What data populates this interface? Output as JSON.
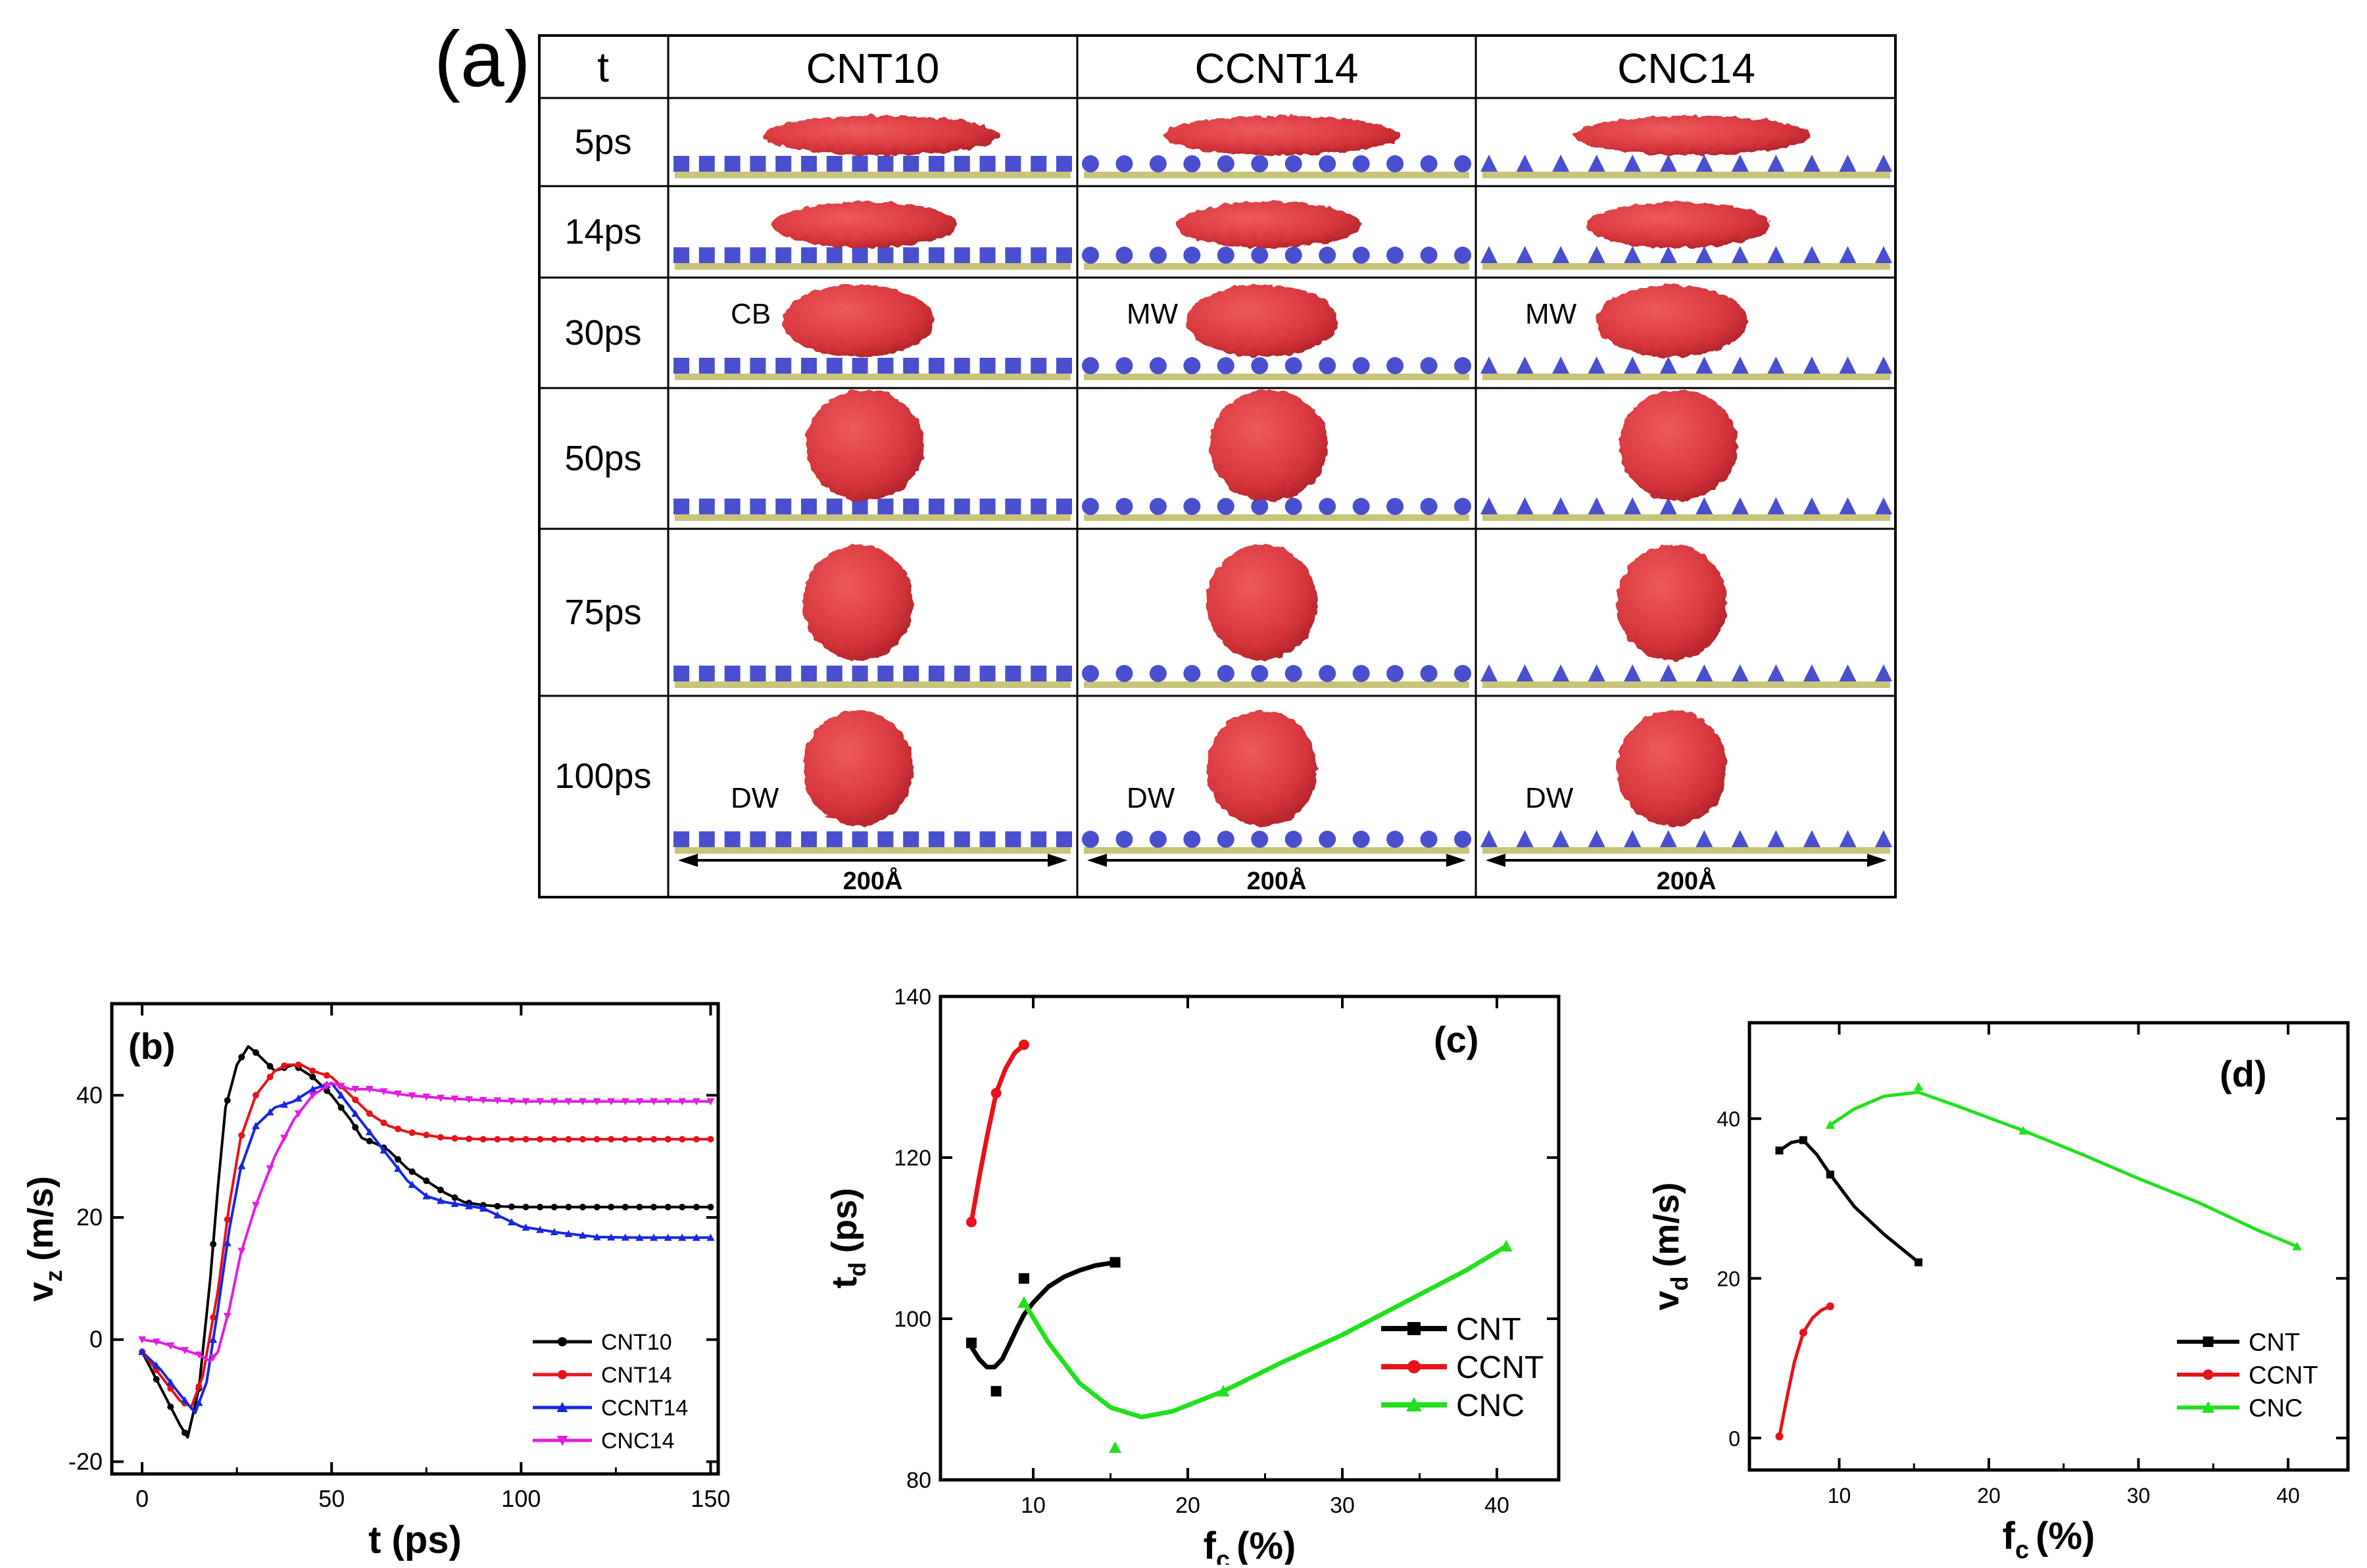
{
  "panel_a": {
    "tag": "(a)",
    "corner_header": "t",
    "columns": [
      "CNT10",
      "CCNT14",
      "CNC14"
    ],
    "rows": [
      {
        "time": "5ps",
        "labels": [
          "",
          "",
          ""
        ],
        "shape": [
          "slab",
          "slab",
          "slab"
        ]
      },
      {
        "time": "14ps",
        "labels": [
          "",
          "",
          ""
        ],
        "shape": [
          "slab2",
          "slab2",
          "slab2"
        ]
      },
      {
        "time": "30ps",
        "labels": [
          "CB",
          "MW",
          "MW"
        ],
        "shape": [
          "pill",
          "pill",
          "pill"
        ]
      },
      {
        "time": "50ps",
        "labels": [
          "",
          "",
          ""
        ],
        "shape": [
          "ball",
          "ball",
          "ball"
        ]
      },
      {
        "time": "75ps",
        "labels": [
          "",
          "",
          ""
        ],
        "shape": [
          "sphere",
          "sphere",
          "sphere"
        ]
      },
      {
        "time": "100ps",
        "labels": [
          "DW",
          "DW",
          "DW"
        ],
        "shape": [
          "sphere",
          "sphere",
          "sphere"
        ]
      }
    ],
    "scale_label": "200Å",
    "substrate": [
      "square",
      "circle",
      "triangle"
    ],
    "droplet_color": "#d6363c",
    "substrate_color": "#4a4fd0",
    "substrate_base_color": "#c8c47a"
  },
  "chart_data": [
    {
      "id": "b",
      "type": "line",
      "tag": "(b)",
      "xlabel": "t (ps)",
      "ylabel": "v",
      "ylabel_sub": "z",
      "ylabel_unit": "(m/s)",
      "xlim": [
        -8,
        152
      ],
      "ylim": [
        -22,
        55
      ],
      "xticks": [
        0,
        50,
        100,
        150
      ],
      "yticks": [
        -20,
        0,
        20,
        40
      ],
      "legend_position": "bottom-right",
      "series": [
        {
          "name": "CNT10",
          "color": "#000000",
          "marker": "circle",
          "x": [
            0,
            5,
            10,
            12,
            15,
            18,
            20,
            22,
            25,
            28,
            30,
            35,
            40,
            45,
            50,
            55,
            58,
            62,
            65,
            70,
            75,
            80,
            85,
            90,
            95,
            100,
            110,
            120,
            130,
            140,
            150
          ],
          "y": [
            -2,
            -8,
            -14,
            -16,
            -8,
            10,
            25,
            38,
            45,
            48,
            47,
            44,
            45,
            43,
            40,
            36,
            33,
            32,
            31,
            28,
            26,
            24,
            22.5,
            22,
            21.8,
            21.7,
            21.7,
            21.7,
            21.7,
            21.7,
            21.7
          ]
        },
        {
          "name": "CNT14",
          "color": "#e8121a",
          "marker": "circle",
          "x": [
            0,
            5,
            10,
            13,
            16,
            20,
            23,
            26,
            30,
            35,
            38,
            42,
            45,
            50,
            55,
            60,
            65,
            70,
            75,
            80,
            90,
            100,
            110,
            120,
            130,
            140,
            150
          ],
          "y": [
            -2,
            -6,
            -10,
            -11,
            -6,
            8,
            22,
            33,
            40,
            44,
            45,
            45,
            44,
            43,
            40,
            37,
            35,
            34,
            33.5,
            33,
            32.8,
            32.8,
            32.8,
            32.8,
            32.8,
            32.8,
            32.8
          ]
        },
        {
          "name": "CCNT14",
          "color": "#1628e0",
          "marker": "triangle",
          "x": [
            0,
            5,
            10,
            14,
            17,
            20,
            23,
            26,
            30,
            35,
            40,
            45,
            50,
            55,
            60,
            65,
            70,
            75,
            80,
            85,
            90,
            95,
            100,
            110,
            120,
            130,
            140,
            150
          ],
          "y": [
            -2,
            -5,
            -9,
            -12,
            -7,
            5,
            18,
            28,
            35,
            38,
            39,
            41,
            42,
            38,
            34,
            30,
            26,
            23.5,
            22.5,
            22,
            21.5,
            20,
            18.5,
            17.5,
            16.8,
            16.7,
            16.7,
            16.7
          ]
        },
        {
          "name": "CNC14",
          "color": "#e21ee0",
          "marker": "triangle-down",
          "x": [
            0,
            5,
            10,
            15,
            18,
            20,
            23,
            26,
            30,
            35,
            40,
            45,
            50,
            55,
            60,
            70,
            80,
            90,
            100,
            110,
            120,
            130,
            140,
            150
          ],
          "y": [
            0,
            -0.5,
            -1.5,
            -2.5,
            -3.5,
            -2,
            5,
            14,
            22,
            30,
            36,
            40,
            42,
            41,
            41,
            40,
            39.5,
            39.2,
            39,
            39,
            39,
            39,
            39,
            39
          ]
        }
      ]
    },
    {
      "id": "c",
      "type": "line",
      "tag": "(c)",
      "xlabel": "f",
      "xlabel_sub": "c",
      "xlabel_unit": "(%)",
      "ylabel": "t",
      "ylabel_sub": "d",
      "ylabel_unit": "(ps)",
      "xlim": [
        4,
        44
      ],
      "ylim": [
        80,
        140
      ],
      "xticks": [
        10,
        20,
        30,
        40
      ],
      "yticks": [
        80,
        100,
        120,
        140
      ],
      "legend_position": "right",
      "series": [
        {
          "name": "CNT",
          "color": "#000000",
          "marker": "square",
          "points_x": [
            6,
            7.6,
            9.4,
            15.3
          ],
          "points_y": [
            97,
            91,
            105,
            107
          ],
          "curve_x": [
            6,
            6.5,
            7,
            7.5,
            8,
            8.5,
            9,
            9.4,
            10,
            11,
            12,
            13,
            14,
            15.3
          ],
          "curve_y": [
            96.5,
            95,
            94,
            94,
            95,
            97,
            99,
            100.5,
            102,
            104,
            105.2,
            106,
            106.6,
            107
          ]
        },
        {
          "name": "CCNT",
          "color": "#e8121a",
          "marker": "circle",
          "points_x": [
            6,
            7.6,
            9.4
          ],
          "points_y": [
            112,
            128,
            134
          ],
          "curve_x": [
            6,
            6.5,
            7,
            7.6,
            8.2,
            8.8,
            9.4
          ],
          "curve_y": [
            112,
            117.5,
            122.5,
            128,
            131,
            133,
            134
          ]
        },
        {
          "name": "CNC",
          "color": "#22e01e",
          "marker": "triangle",
          "points_x": [
            9.4,
            15.3,
            22.3,
            40.6
          ],
          "points_y": [
            102,
            84,
            91,
            109
          ],
          "curve_x": [
            9.4,
            11,
            13,
            15,
            17,
            19,
            22.3,
            26,
            30,
            34,
            38,
            40.6
          ],
          "curve_y": [
            102,
            97,
            92,
            89,
            87.8,
            88.5,
            91,
            94.5,
            98,
            102,
            106,
            109
          ]
        }
      ]
    },
    {
      "id": "d",
      "type": "line",
      "tag": "(d)",
      "xlabel": "f",
      "xlabel_sub": "c",
      "xlabel_unit": "(%)",
      "ylabel": "v",
      "ylabel_sub": "d",
      "ylabel_unit": "(m/s)",
      "xlim": [
        4,
        44
      ],
      "ylim": [
        -4,
        52
      ],
      "xticks": [
        10,
        20,
        30,
        40
      ],
      "yticks": [
        0,
        20,
        40
      ],
      "legend_position": "bottom-right",
      "series": [
        {
          "name": "CNT",
          "color": "#000000",
          "marker": "square",
          "points_x": [
            6,
            7.6,
            9.4,
            15.3
          ],
          "points_y": [
            36,
            37.3,
            33,
            22
          ],
          "curve_x": [
            6,
            6.8,
            7.6,
            8.5,
            9.4,
            11,
            13,
            15.3
          ],
          "curve_y": [
            36,
            37,
            37.3,
            35.5,
            33,
            29,
            25.5,
            22
          ]
        },
        {
          "name": "CCNT",
          "color": "#e8121a",
          "marker": "circle",
          "points_x": [
            6,
            7.6,
            9.4
          ],
          "points_y": [
            0.2,
            13.2,
            16.5
          ],
          "curve_x": [
            6,
            6.5,
            7,
            7.6,
            8.2,
            8.8,
            9.4
          ],
          "curve_y": [
            0.2,
            5,
            9.5,
            13.2,
            15,
            16,
            16.5
          ]
        },
        {
          "name": "CNC",
          "color": "#22e01e",
          "marker": "triangle",
          "points_x": [
            9.4,
            15.3,
            22.3,
            40.6
          ],
          "points_y": [
            39.2,
            44,
            38.5,
            24
          ],
          "curve_x": [
            9.4,
            11,
            13,
            15.3,
            18,
            22.3,
            26,
            30,
            34,
            38,
            40.6
          ],
          "curve_y": [
            39.2,
            41.2,
            42.8,
            43.3,
            41.5,
            38.5,
            35.7,
            32.5,
            29.5,
            26,
            24
          ]
        }
      ]
    }
  ]
}
